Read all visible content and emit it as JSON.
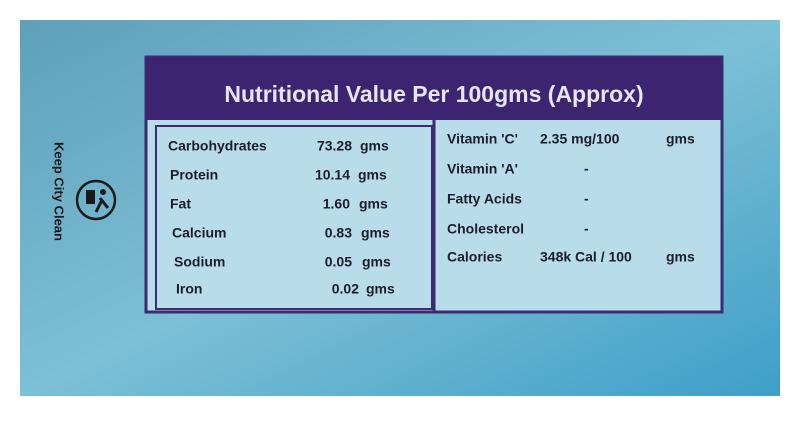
{
  "side_text": "Keep City Clean",
  "label": {
    "title": "Nutritional Value Per 100gms (Approx)",
    "left_rows": [
      [
        "Carbohydrates",
        "73.28",
        "gms"
      ],
      [
        "Protein",
        "10.14",
        "gms"
      ],
      [
        "Fat",
        "1.60",
        "gms"
      ],
      [
        "Calcium",
        "0.83",
        "gms"
      ],
      [
        "Sodium",
        "0.05",
        "gms"
      ],
      [
        "Iron",
        "0.02",
        "gms"
      ]
    ],
    "right_rows": [
      [
        "Vitamin 'C'",
        "2.35 mg/100",
        "gms"
      ],
      [
        "Vitamin 'A'",
        "-"
      ],
      [
        "Fatty Acids",
        "-"
      ],
      [
        "Cholesterol",
        "-"
      ],
      [
        "Calories",
        "348k Cal / 100",
        "gms"
      ]
    ]
  }
}
